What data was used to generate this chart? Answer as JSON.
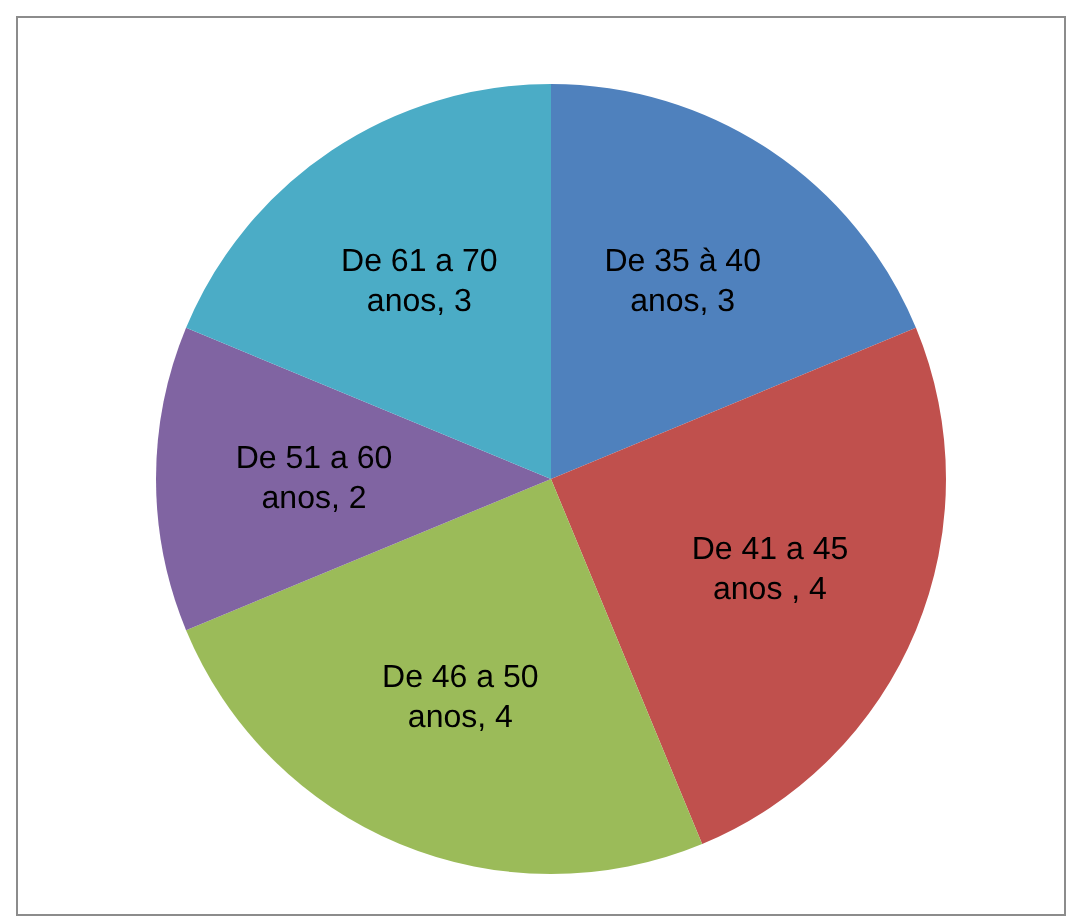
{
  "chart_data": {
    "type": "pie",
    "categories": [
      "De 35 à 40 anos, 3",
      "De 41 a 45 anos , 4",
      "De 46 a 50 anos, 4",
      "De 51 a 60 anos, 2",
      "De 61 a 70 anos, 3"
    ],
    "values": [
      3,
      4,
      4,
      2,
      3
    ],
    "colors": [
      "#4f81bd",
      "#c0504d",
      "#9bbb59",
      "#8064a2",
      "#4bacc6"
    ],
    "legend": false
  }
}
